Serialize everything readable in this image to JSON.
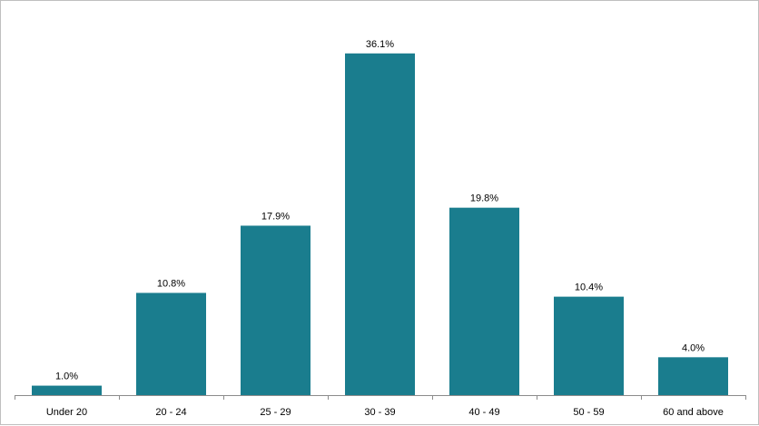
{
  "chart_data": {
    "type": "bar",
    "categories": [
      "Under 20",
      "20 - 24",
      "25 - 29",
      "30 - 39",
      "40 - 49",
      "50 - 59",
      "60 and above"
    ],
    "values": [
      1.0,
      10.8,
      17.9,
      36.1,
      19.8,
      10.4,
      4.0
    ],
    "value_labels": [
      "1.0%",
      "10.8%",
      "17.9%",
      "36.1%",
      "19.8%",
      "10.4%",
      "4.0%"
    ],
    "ylim": [
      0,
      38
    ],
    "grid": false,
    "legend": "none",
    "bar_color": "#1a7d8e",
    "axis_color": "#8c8c8c"
  }
}
